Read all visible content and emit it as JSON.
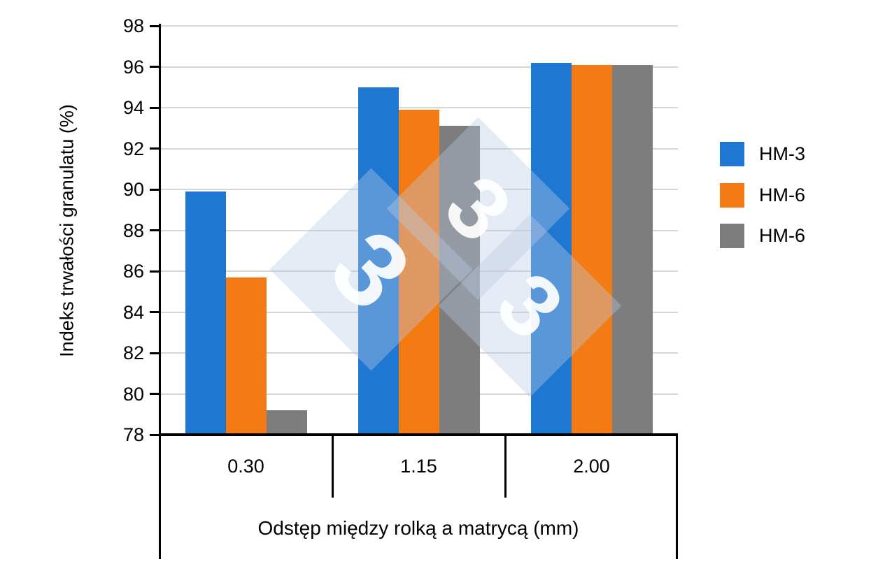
{
  "chart_data": {
    "type": "bar",
    "title": "",
    "categories": [
      "0.30",
      "1.15",
      "2.00"
    ],
    "series": [
      {
        "name": "HM-3",
        "color": "#1E78D2",
        "values": [
          89.9,
          95.0,
          96.2
        ]
      },
      {
        "name": "HM-6",
        "color": "#F47B13",
        "values": [
          85.7,
          93.9,
          96.1
        ]
      },
      {
        "name": "HM-6",
        "color": "#7D7D7D",
        "values": [
          79.2,
          93.1,
          96.1
        ]
      }
    ],
    "xlabel": "Odstęp między rolką a matrycą (mm)",
    "ylabel": "Indeks trwałości granulatu (%)",
    "ylim": [
      78,
      98
    ],
    "ytick_step": 2,
    "grid": true,
    "legend_position": "right"
  },
  "watermark": {
    "glyph": "3",
    "fill_color": "#BBCAE6",
    "glyph_color": "#FFFFFF"
  },
  "style": {
    "axis_color": "#000000",
    "gridline_color": "#D6D6D6",
    "background": "#FFFFFF"
  }
}
